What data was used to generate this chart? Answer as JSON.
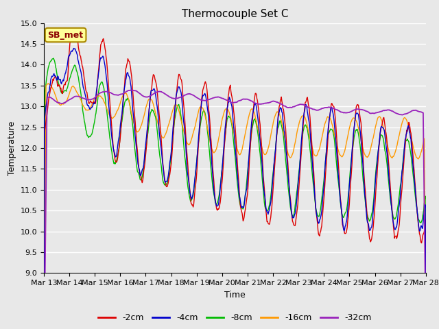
{
  "title": "Thermocouple Set C",
  "xlabel": "Time",
  "ylabel": "Temperature",
  "ylim": [
    9.0,
    15.0
  ],
  "yticks": [
    9.0,
    9.5,
    10.0,
    10.5,
    11.0,
    11.5,
    12.0,
    12.5,
    13.0,
    13.5,
    14.0,
    14.5,
    15.0
  ],
  "xtick_labels": [
    "Mar 13",
    "Mar 14",
    "Mar 15",
    "Mar 16",
    "Mar 17",
    "Mar 18",
    "Mar 19",
    "Mar 20",
    "Mar 21",
    "Mar 22",
    "Mar 23",
    "Mar 24",
    "Mar 25",
    "Mar 26",
    "Mar 27",
    "Mar 28"
  ],
  "colors": {
    "-2cm": "#dd0000",
    "-4cm": "#0000cc",
    "-8cm": "#00bb00",
    "-16cm": "#ff9900",
    "-32cm": "#9922bb"
  },
  "legend_labels": [
    "-2cm",
    "-4cm",
    "-8cm",
    "-16cm",
    "-32cm"
  ],
  "annotation_text": "SB_met",
  "annotation_color": "#8B0000",
  "annotation_bg": "#ffff99",
  "annotation_border": "#aa8800",
  "plot_bg": "#e8e8e8",
  "fig_bg": "#e8e8e8",
  "grid_color": "#ffffff",
  "title_fontsize": 11,
  "axis_fontsize": 9,
  "tick_fontsize": 8
}
